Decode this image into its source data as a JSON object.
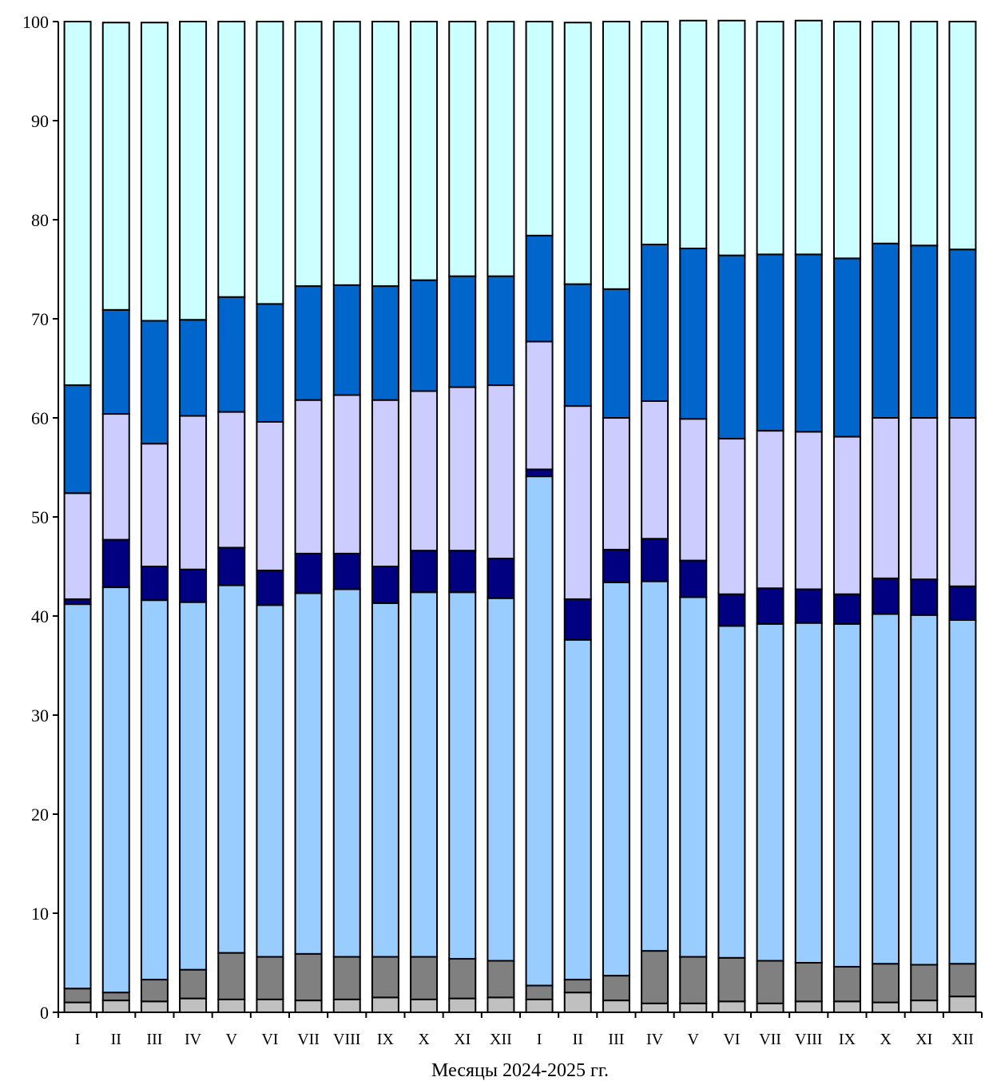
{
  "chart_data": {
    "type": "bar",
    "stacked": true,
    "categories": [
      "I",
      "II",
      "III",
      "IV",
      "V",
      "VI",
      "VII",
      "VIII",
      "IX",
      "X",
      "XI",
      "XII",
      "I",
      "II",
      "III",
      "IV",
      "V",
      "VI",
      "VII",
      "VIII",
      "IX",
      "X",
      "XI",
      "XII"
    ],
    "xlabel": "Месяцы 2024-2025 гг.",
    "ylabel": "",
    "ylim": [
      0,
      100
    ],
    "yticks": [
      0,
      10,
      20,
      30,
      40,
      50,
      60,
      70,
      80,
      90,
      100
    ],
    "grid": false,
    "legend": "none",
    "series": [
      {
        "color": "#c0c0c0",
        "values": [
          1.0,
          1.2,
          1.1,
          1.4,
          1.3,
          1.3,
          1.2,
          1.3,
          1.5,
          1.3,
          1.4,
          1.5,
          1.3,
          2.0,
          1.2,
          0.9,
          0.9,
          1.1,
          0.9,
          1.1,
          1.1,
          1.0,
          1.2,
          1.6
        ]
      },
      {
        "color": "#808080",
        "values": [
          1.4,
          0.8,
          2.2,
          2.9,
          4.7,
          4.3,
          4.7,
          4.3,
          4.1,
          4.3,
          4.0,
          3.7,
          1.4,
          1.3,
          2.5,
          5.3,
          4.7,
          4.4,
          4.3,
          3.9,
          3.5,
          3.9,
          3.6,
          3.3
        ]
      },
      {
        "color": "#99ccff",
        "values": [
          38.8,
          40.9,
          38.3,
          37.1,
          37.1,
          35.5,
          36.4,
          37.1,
          35.7,
          36.8,
          37.0,
          36.6,
          51.4,
          34.3,
          39.7,
          37.3,
          36.3,
          33.5,
          34.0,
          34.3,
          34.6,
          35.3,
          35.3,
          34.7
        ]
      },
      {
        "color": "#000080",
        "values": [
          0.5,
          4.8,
          3.4,
          3.3,
          3.8,
          3.5,
          4.0,
          3.6,
          3.7,
          4.2,
          4.2,
          4.0,
          0.7,
          4.1,
          3.3,
          4.3,
          3.7,
          3.2,
          3.6,
          3.4,
          3.0,
          3.6,
          3.6,
          3.4
        ]
      },
      {
        "color": "#ccccff",
        "values": [
          10.7,
          12.7,
          12.4,
          15.5,
          13.7,
          15.0,
          15.5,
          16.0,
          16.8,
          16.1,
          16.5,
          17.5,
          12.9,
          19.5,
          13.3,
          13.9,
          14.3,
          15.7,
          15.9,
          15.9,
          15.9,
          16.2,
          16.3,
          17.0
        ]
      },
      {
        "color": "#0066cc",
        "values": [
          10.9,
          10.5,
          12.4,
          9.7,
          11.6,
          11.9,
          11.5,
          11.1,
          11.5,
          11.2,
          11.2,
          11.0,
          10.7,
          12.3,
          13.0,
          15.8,
          17.2,
          18.5,
          17.8,
          17.9,
          18.0,
          17.6,
          17.4,
          17.0
        ]
      },
      {
        "color": "#ccffff",
        "values": [
          36.7,
          29.0,
          30.1,
          30.1,
          27.8,
          28.5,
          26.7,
          26.6,
          26.7,
          26.1,
          25.7,
          25.7,
          21.6,
          26.4,
          27.0,
          22.5,
          23.0,
          23.7,
          23.5,
          23.6,
          23.9,
          22.4,
          22.6,
          23.0
        ]
      }
    ]
  }
}
